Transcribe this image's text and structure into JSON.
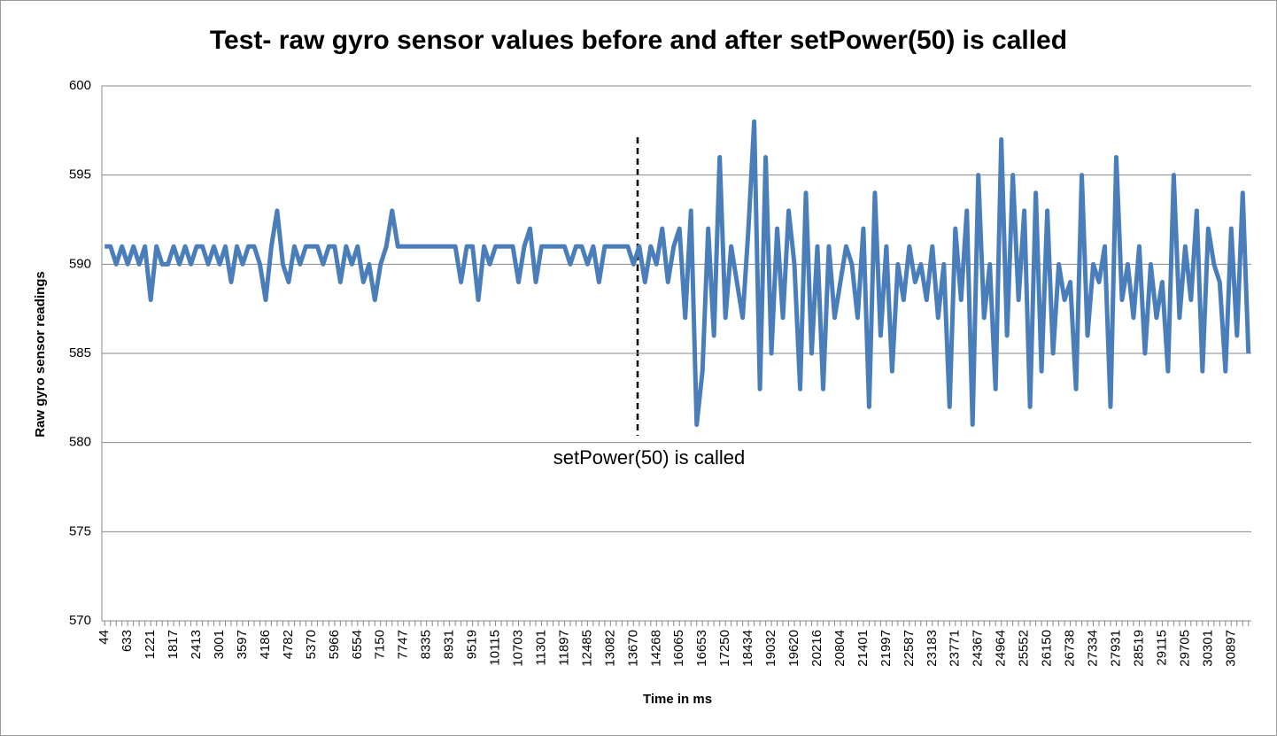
{
  "chart_data": {
    "type": "line",
    "title": "Test- raw gyro sensor values before and after setPower(50) is called",
    "x_label": "Time in ms",
    "y_label": "Raw gyro sensor readings",
    "annotation": "setPower(50) is called",
    "categories": [
      "44",
      null,
      null,
      null,
      "633",
      null,
      null,
      null,
      "1221",
      null,
      null,
      null,
      "1817",
      null,
      null,
      null,
      "2413",
      null,
      null,
      null,
      "3001",
      null,
      null,
      null,
      "3597",
      null,
      null,
      null,
      "4186",
      null,
      null,
      null,
      "4782",
      null,
      null,
      null,
      "5370",
      null,
      null,
      null,
      "5966",
      null,
      null,
      null,
      "6554",
      null,
      null,
      null,
      "7150",
      null,
      null,
      null,
      "7747",
      null,
      null,
      null,
      "8335",
      null,
      null,
      null,
      "8931",
      null,
      null,
      null,
      "9519",
      null,
      null,
      null,
      "10115",
      null,
      null,
      null,
      "10703",
      null,
      null,
      null,
      "11301",
      null,
      null,
      null,
      "11897",
      null,
      null,
      null,
      "12485",
      null,
      null,
      null,
      "13082",
      null,
      null,
      null,
      "13670",
      null,
      null,
      null,
      "14268",
      null,
      null,
      null,
      "16065",
      null,
      null,
      null,
      "16653",
      null,
      null,
      null,
      "17250",
      null,
      null,
      null,
      "18434",
      null,
      null,
      null,
      "19032",
      null,
      null,
      null,
      "19620",
      null,
      null,
      null,
      "20216",
      null,
      null,
      null,
      "20804",
      null,
      null,
      null,
      "21401",
      null,
      null,
      null,
      "21997",
      null,
      null,
      null,
      "22587",
      null,
      null,
      null,
      "23183",
      null,
      null,
      null,
      "23771",
      null,
      null,
      null,
      "24367",
      null,
      null,
      null,
      "24964",
      null,
      null,
      null,
      "25552",
      null,
      null,
      null,
      "26150",
      null,
      null,
      null,
      "26738",
      null,
      null,
      null,
      "27334",
      null,
      null,
      null,
      "27931",
      null,
      null,
      null,
      "28519",
      null,
      null,
      null,
      "29115",
      null,
      null,
      null,
      "29705",
      null,
      null,
      null,
      "30301",
      null,
      null,
      null,
      "30897",
      null,
      null,
      null
    ],
    "series": [
      {
        "name": "Raw gyro sensor readings",
        "color": "#4a7ebb",
        "values": [
          591,
          591,
          590,
          591,
          590,
          591,
          590,
          591,
          588,
          591,
          590,
          590,
          591,
          590,
          591,
          590,
          591,
          591,
          590,
          591,
          590,
          591,
          589,
          591,
          590,
          591,
          591,
          590,
          588,
          591,
          593,
          590,
          589,
          591,
          590,
          591,
          591,
          591,
          590,
          591,
          591,
          589,
          591,
          590,
          591,
          589,
          590,
          588,
          590,
          591,
          593,
          591,
          591,
          591,
          591,
          591,
          591,
          591,
          591,
          591,
          591,
          591,
          589,
          591,
          591,
          588,
          591,
          590,
          591,
          591,
          591,
          591,
          589,
          591,
          592,
          589,
          591,
          591,
          591,
          591,
          591,
          590,
          591,
          591,
          590,
          591,
          589,
          591,
          591,
          591,
          591,
          591,
          590,
          591,
          589,
          591,
          590,
          592,
          589,
          591,
          592,
          587,
          593,
          581,
          584,
          592,
          586,
          596,
          587,
          591,
          589,
          587,
          592,
          598,
          583,
          596,
          585,
          592,
          587,
          593,
          590,
          583,
          594,
          585,
          591,
          583,
          591,
          587,
          589,
          591,
          590,
          587,
          592,
          582,
          594,
          586,
          591,
          584,
          590,
          588,
          591,
          589,
          590,
          588,
          591,
          587,
          590,
          582,
          592,
          588,
          593,
          581,
          595,
          587,
          590,
          583,
          597,
          586,
          595,
          588,
          593,
          582,
          594,
          584,
          593,
          585,
          590,
          588,
          589,
          583,
          595,
          586,
          590,
          589,
          591,
          582,
          596,
          588,
          590,
          587,
          591,
          585,
          590,
          587,
          589,
          584,
          595,
          587,
          591,
          588,
          593,
          584,
          592,
          590,
          589,
          584,
          592,
          586,
          594,
          585
        ]
      }
    ],
    "ylim": [
      570,
      600
    ],
    "yticks": [
      570,
      575,
      580,
      585,
      590,
      595,
      600
    ],
    "grid": true
  }
}
